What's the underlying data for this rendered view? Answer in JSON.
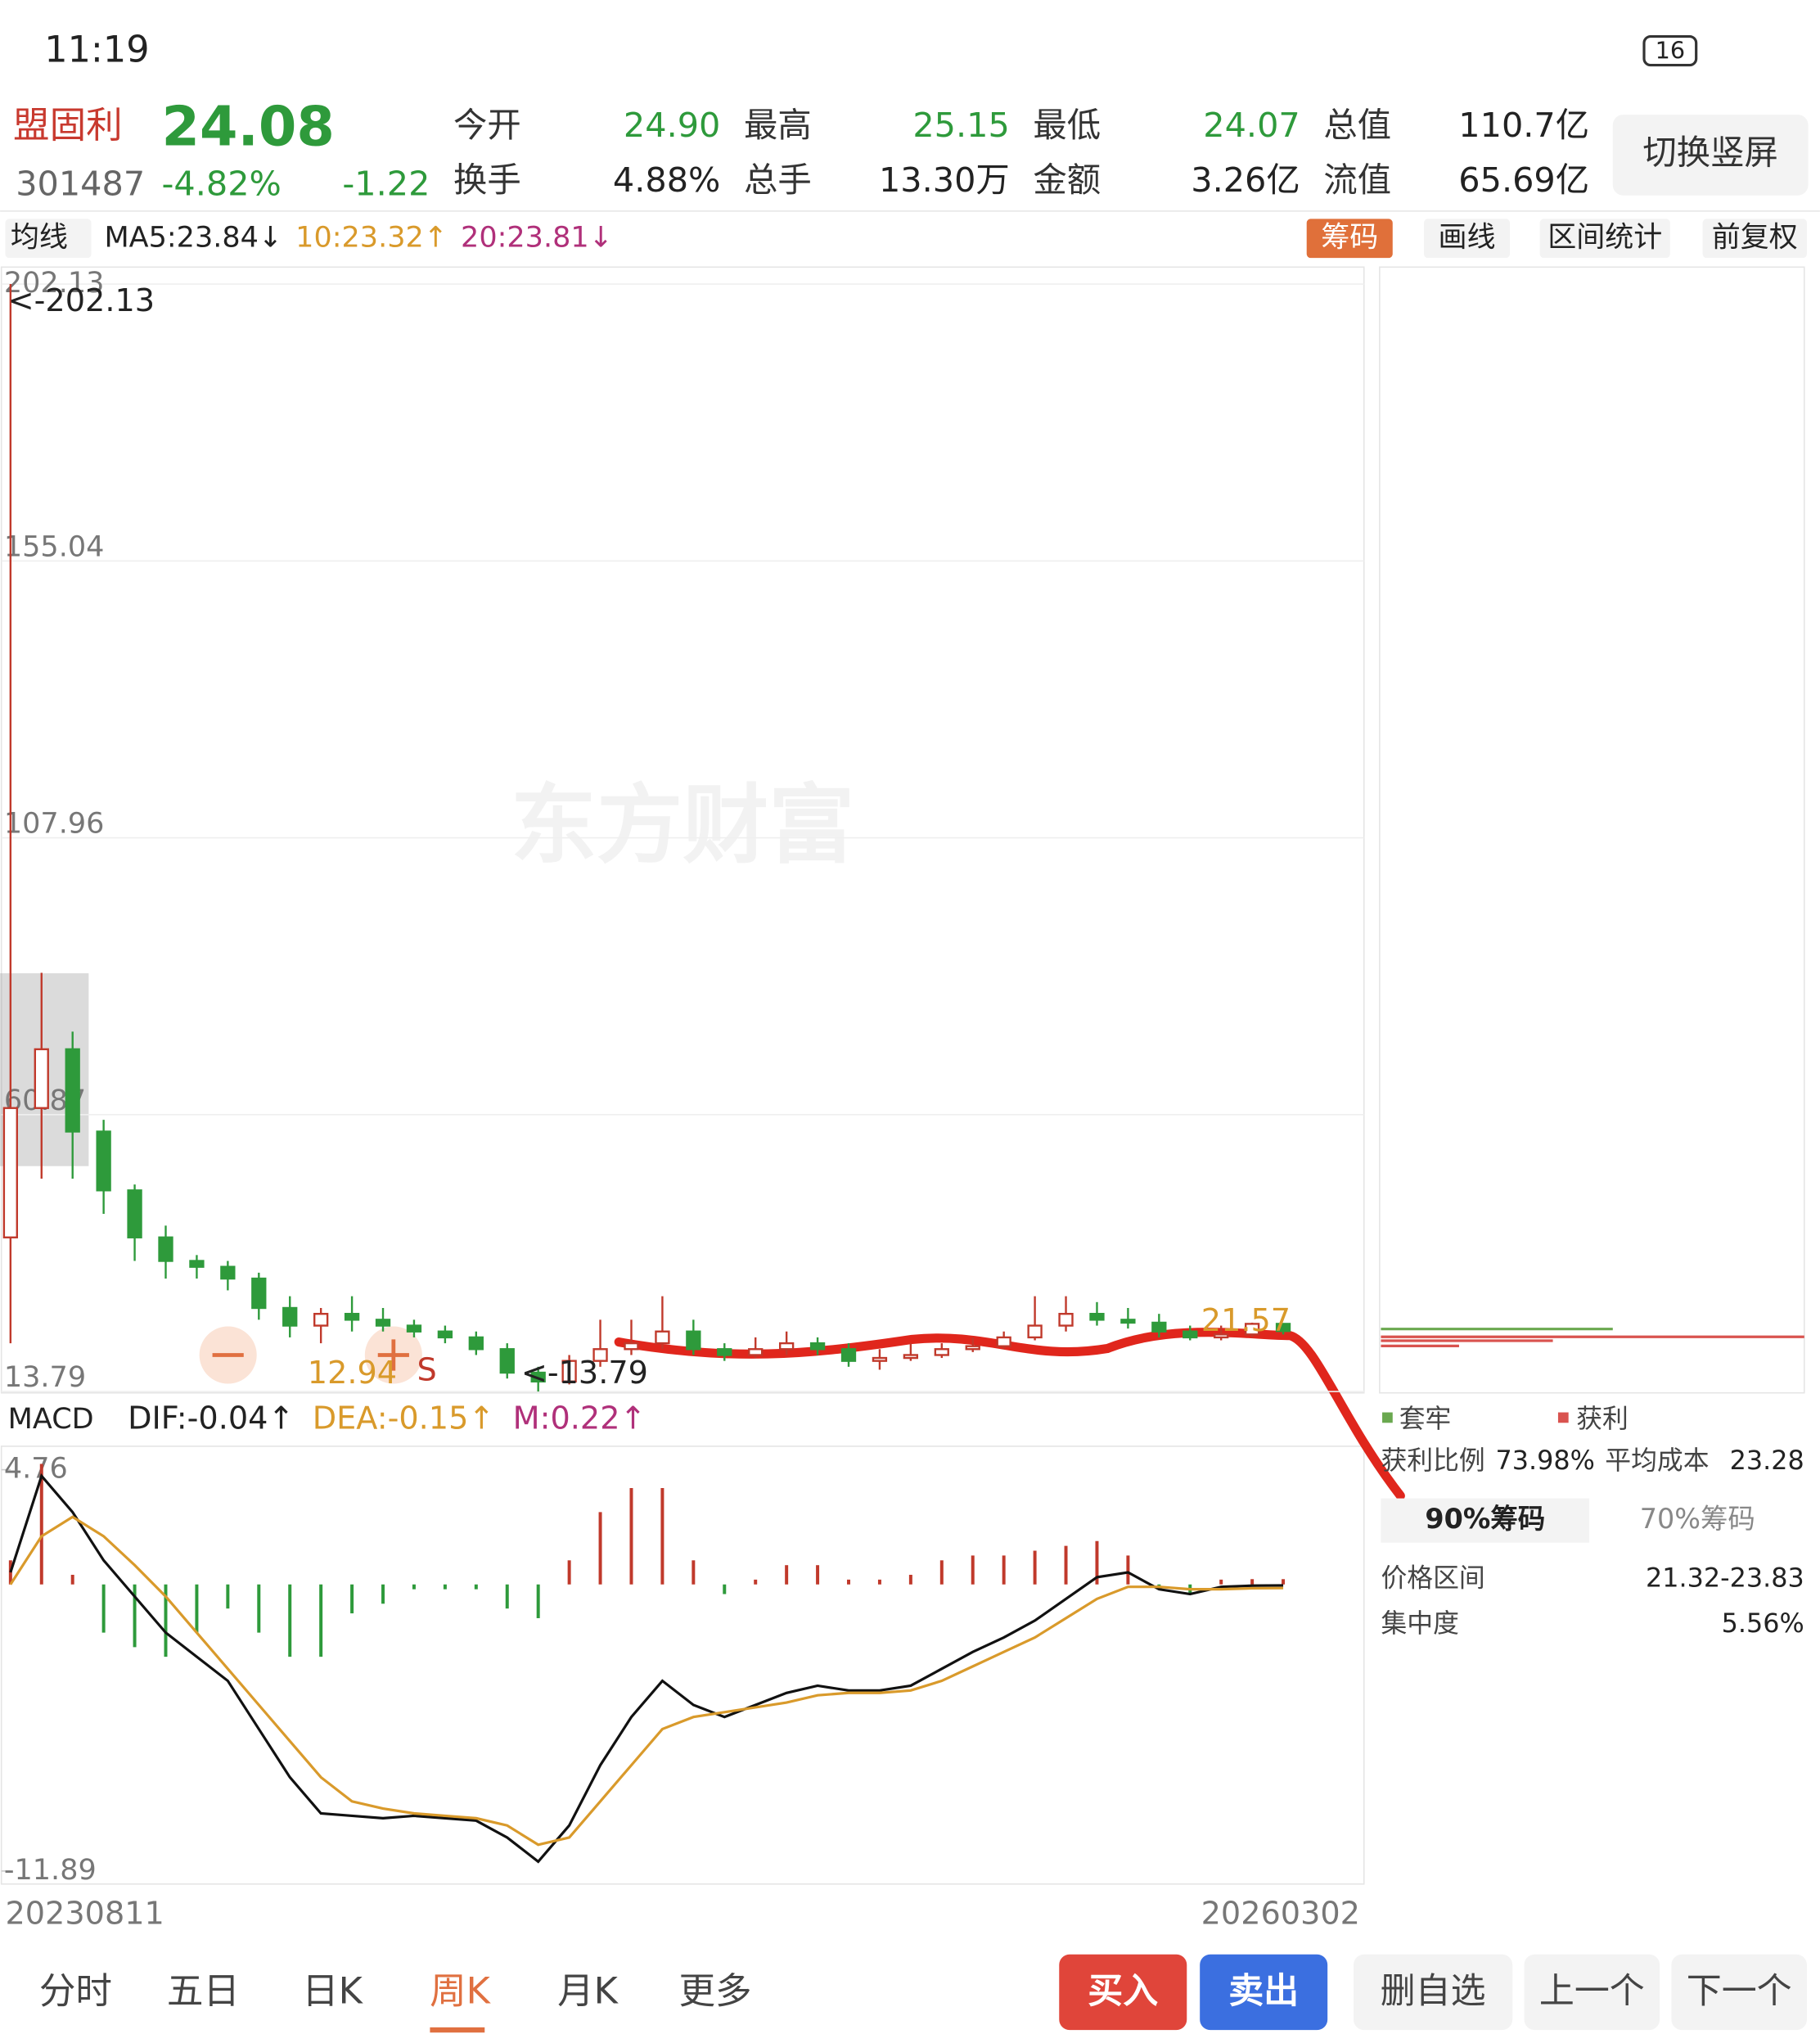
{
  "status": {
    "time": "11:19",
    "battery": "16"
  },
  "header": {
    "name": "盟固利",
    "price": "24.08",
    "code": "301487",
    "change_pct": "-4.82%",
    "change": "-1.22",
    "stats": [
      {
        "label": "今开",
        "value": "24.90",
        "color": "#2e9a3b"
      },
      {
        "label": "最高",
        "value": "25.15",
        "color": "#2e9a3b"
      },
      {
        "label": "最低",
        "value": "24.07",
        "color": "#2e9a3b"
      },
      {
        "label": "总值",
        "value": "110.7亿",
        "color": "#222"
      },
      {
        "label": "换手",
        "value": "4.88%",
        "color": "#222"
      },
      {
        "label": "总手",
        "value": "13.30万",
        "color": "#222"
      },
      {
        "label": "金额",
        "value": "3.26亿",
        "color": "#222"
      },
      {
        "label": "流值",
        "value": "65.69亿",
        "color": "#222"
      }
    ],
    "button": "切换竖屏"
  },
  "toolbar": {
    "ma_select": "均线",
    "ma": [
      {
        "text": "MA5:23.84↓",
        "color": "#222"
      },
      {
        "text": "10:23.32↑",
        "color": "#d99a2b"
      },
      {
        "text": "20:23.81↓",
        "color": "#b0307a"
      }
    ],
    "tabs": [
      "筹码",
      "画线",
      "区间统计",
      "前复权"
    ]
  },
  "chart_data": {
    "type": "candlestick",
    "watermark": "东方财富",
    "ylim": [
      13.79,
      202.13
    ],
    "yticks": [
      202.13,
      155.04,
      107.96,
      60.87,
      13.79
    ],
    "up_color": "#c0392b",
    "down_color": "#2e9a3b",
    "annotations": [
      "<-202.13",
      "12.94",
      "S",
      "<-13.79",
      "21.57"
    ],
    "x_start": "20230811",
    "x_end": "20260302",
    "open": [
      40,
      62,
      72,
      58,
      48,
      40,
      36,
      35,
      33,
      28,
      25,
      27,
      26,
      25,
      24,
      23,
      21,
      17,
      15.5,
      19,
      21,
      22,
      24,
      21,
      20,
      21,
      22,
      21,
      19,
      19.5,
      20,
      21,
      21.5,
      23,
      25,
      27,
      26,
      25.5,
      24,
      23,
      23.5,
      25.3
    ],
    "close": [
      62,
      72,
      58,
      48,
      40,
      36,
      35,
      33,
      28,
      25,
      27,
      26,
      25,
      24,
      23,
      21,
      17,
      15.5,
      19,
      21,
      22,
      24,
      21,
      20,
      21,
      22,
      21,
      19,
      19.5,
      20,
      21,
      21.5,
      23,
      25,
      27,
      26,
      25.5,
      24,
      23,
      23.5,
      25.3,
      24.08
    ],
    "high": [
      202.13,
      85,
      75,
      60,
      49,
      42,
      37,
      36,
      34,
      30,
      28,
      30,
      28,
      26,
      25,
      24,
      22,
      18,
      20,
      26,
      26,
      30,
      26,
      22,
      23,
      24,
      23,
      22,
      21,
      22,
      22,
      23,
      24,
      30,
      30,
      29,
      28,
      27,
      25,
      25,
      25.5,
      25.4
    ],
    "low": [
      22,
      50,
      50,
      44,
      36,
      33,
      33,
      31,
      26,
      23,
      22,
      24,
      24,
      23,
      22,
      20,
      16,
      13.79,
      15,
      18,
      20,
      21,
      20,
      19,
      19.5,
      20,
      20,
      18,
      17.5,
      19,
      19.5,
      20.5,
      21,
      22.5,
      24,
      25,
      24.5,
      23,
      22.5,
      22.5,
      23,
      23.5
    ]
  },
  "macd": {
    "indicator": "MACD",
    "labels": [
      {
        "text": "DIF:-0.04↑",
        "color": "#222"
      },
      {
        "text": "DEA:-0.15↑",
        "color": "#d99a2b"
      },
      {
        "text": "M:0.22↑",
        "color": "#b0307a"
      }
    ],
    "ylim": [
      -11.89,
      4.76
    ],
    "yticks": [
      4.76,
      -11.89
    ],
    "dif": [
      0.5,
      4.5,
      3,
      1,
      -0.5,
      -2,
      -3,
      -4,
      -6,
      -8,
      -9.5,
      -9.6,
      -9.7,
      -9.6,
      -9.7,
      -9.8,
      -10.5,
      -11.5,
      -10,
      -7.5,
      -5.5,
      -4,
      -5,
      -5.5,
      -5,
      -4.5,
      -4.2,
      -4.4,
      -4.4,
      -4.2,
      -3.5,
      -2.8,
      -2.2,
      -1.5,
      -0.6,
      0.3,
      0.5,
      -0.2,
      -0.4,
      -0.1,
      -0.05,
      -0.04
    ],
    "dea": [
      0,
      2,
      2.8,
      2,
      0.8,
      -0.5,
      -2,
      -3.5,
      -5,
      -6.5,
      -8,
      -9,
      -9.3,
      -9.5,
      -9.6,
      -9.7,
      -10,
      -10.8,
      -10.5,
      -9,
      -7.5,
      -6,
      -5.5,
      -5.3,
      -5.1,
      -4.9,
      -4.6,
      -4.5,
      -4.5,
      -4.4,
      -4,
      -3.4,
      -2.8,
      -2.2,
      -1.4,
      -0.6,
      -0.1,
      -0.1,
      -0.2,
      -0.2,
      -0.16,
      -0.15
    ],
    "hist": [
      1,
      5,
      0.4,
      -2,
      -2.6,
      -3,
      -2,
      -1,
      -2,
      -3,
      -3,
      -1.2,
      -0.8,
      -0.2,
      -0.2,
      -0.2,
      -1,
      -1.4,
      1,
      3,
      4,
      4,
      1,
      -0.4,
      0.2,
      0.8,
      0.8,
      0.2,
      0.2,
      0.4,
      1,
      1.2,
      1.2,
      1.4,
      1.6,
      1.8,
      1.2,
      -0.2,
      -0.4,
      0.2,
      0.22,
      0.22
    ]
  },
  "chips": {
    "legend": [
      "套牢",
      "获利"
    ],
    "profit_label": "获利比例",
    "profit_value": "73.98%",
    "cost_label": "平均成本",
    "cost_value": "23.28",
    "tabs": [
      "90%筹码",
      "70%筹码"
    ],
    "rows": [
      [
        "价格区间",
        "21.32-23.83"
      ],
      [
        "集中度",
        "5.56%"
      ]
    ]
  },
  "bottom": {
    "periods": [
      "分时",
      "五日",
      "日K",
      "周K",
      "月K",
      "更多"
    ],
    "buttons": [
      "买入",
      "卖出",
      "删自选",
      "上一个",
      "下一个"
    ]
  }
}
